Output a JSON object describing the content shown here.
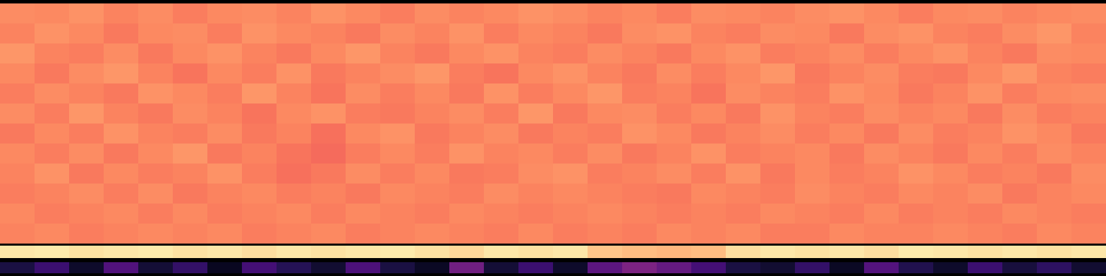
{
  "chart_data": [
    {
      "type": "heatmap",
      "color": "magma",
      "color_range": [
        0,
        1
      ],
      "tick_labels": false,
      "cells": [
        [
          0.76,
          0.75,
          0.77,
          0.74,
          0.76,
          0.73,
          0.75,
          0.76,
          0.74,
          0.77,
          0.75,
          0.73,
          0.76,
          0.74,
          0.75,
          0.77,
          0.76,
          0.74,
          0.75,
          0.73,
          0.76,
          0.75,
          0.74,
          0.76,
          0.77,
          0.75,
          0.73,
          0.75,
          0.76,
          0.74,
          0.75,
          0.76
        ],
        [
          0.74,
          0.77,
          0.75,
          0.72,
          0.75,
          0.76,
          0.73,
          0.77,
          0.75,
          0.74,
          0.72,
          0.76,
          0.74,
          0.77,
          0.73,
          0.75,
          0.74,
          0.72,
          0.76,
          0.77,
          0.74,
          0.73,
          0.76,
          0.75,
          0.72,
          0.76,
          0.77,
          0.74,
          0.73,
          0.76,
          0.78,
          0.74
        ],
        [
          0.78,
          0.74,
          0.73,
          0.76,
          0.72,
          0.75,
          0.77,
          0.74,
          0.72,
          0.75,
          0.78,
          0.74,
          0.72,
          0.75,
          0.77,
          0.74,
          0.73,
          0.76,
          0.74,
          0.72,
          0.75,
          0.77,
          0.73,
          0.74,
          0.76,
          0.73,
          0.75,
          0.77,
          0.74,
          0.72,
          0.76,
          0.75
        ],
        [
          0.75,
          0.72,
          0.76,
          0.78,
          0.74,
          0.71,
          0.75,
          0.73,
          0.77,
          0.72,
          0.74,
          0.76,
          0.78,
          0.73,
          0.71,
          0.75,
          0.77,
          0.74,
          0.72,
          0.76,
          0.73,
          0.75,
          0.78,
          0.72,
          0.74,
          0.76,
          0.73,
          0.72,
          0.75,
          0.78,
          0.74,
          0.73
        ],
        [
          0.73,
          0.76,
          0.74,
          0.72,
          0.77,
          0.75,
          0.73,
          0.78,
          0.74,
          0.71,
          0.76,
          0.73,
          0.75,
          0.72,
          0.77,
          0.73,
          0.75,
          0.78,
          0.73,
          0.74,
          0.71,
          0.76,
          0.74,
          0.73,
          0.77,
          0.75,
          0.72,
          0.74,
          0.77,
          0.73,
          0.75,
          0.76
        ],
        [
          0.76,
          0.73,
          0.78,
          0.74,
          0.72,
          0.76,
          0.74,
          0.71,
          0.75,
          0.77,
          0.73,
          0.72,
          0.74,
          0.76,
          0.73,
          0.78,
          0.72,
          0.75,
          0.76,
          0.73,
          0.75,
          0.72,
          0.77,
          0.74,
          0.73,
          0.76,
          0.74,
          0.75,
          0.72,
          0.76,
          0.73,
          0.74
        ],
        [
          0.72,
          0.75,
          0.73,
          0.77,
          0.74,
          0.73,
          0.76,
          0.72,
          0.74,
          0.7,
          0.75,
          0.77,
          0.72,
          0.74,
          0.76,
          0.72,
          0.74,
          0.73,
          0.77,
          0.75,
          0.72,
          0.74,
          0.76,
          0.73,
          0.75,
          0.72,
          0.76,
          0.73,
          0.74,
          0.77,
          0.75,
          0.72
        ],
        [
          0.75,
          0.73,
          0.76,
          0.72,
          0.75,
          0.78,
          0.72,
          0.74,
          0.71,
          0.69,
          0.73,
          0.75,
          0.73,
          0.77,
          0.74,
          0.75,
          0.73,
          0.76,
          0.72,
          0.74,
          0.77,
          0.73,
          0.74,
          0.75,
          0.72,
          0.76,
          0.74,
          0.72,
          0.75,
          0.73,
          0.76,
          0.74
        ],
        [
          0.74,
          0.77,
          0.72,
          0.75,
          0.73,
          0.74,
          0.77,
          0.73,
          0.7,
          0.72,
          0.76,
          0.73,
          0.75,
          0.72,
          0.73,
          0.76,
          0.77,
          0.73,
          0.74,
          0.76,
          0.73,
          0.77,
          0.72,
          0.75,
          0.73,
          0.74,
          0.77,
          0.75,
          0.73,
          0.74,
          0.72,
          0.76
        ],
        [
          0.73,
          0.74,
          0.76,
          0.73,
          0.76,
          0.72,
          0.74,
          0.75,
          0.73,
          0.74,
          0.72,
          0.75,
          0.74,
          0.73,
          0.76,
          0.74,
          0.75,
          0.74,
          0.73,
          0.72,
          0.75,
          0.74,
          0.73,
          0.76,
          0.74,
          0.73,
          0.75,
          0.74,
          0.76,
          0.72,
          0.74,
          0.75
        ],
        [
          0.75,
          0.73,
          0.74,
          0.75,
          0.73,
          0.75,
          0.73,
          0.74,
          0.75,
          0.73,
          0.75,
          0.74,
          0.73,
          0.75,
          0.74,
          0.73,
          0.74,
          0.75,
          0.74,
          0.73,
          0.74,
          0.73,
          0.75,
          0.74,
          0.73,
          0.75,
          0.73,
          0.74,
          0.73,
          0.75,
          0.74,
          0.73
        ],
        [
          0.74,
          0.75,
          0.73,
          0.74,
          0.75,
          0.74,
          0.75,
          0.73,
          0.74,
          0.75,
          0.73,
          0.74,
          0.75,
          0.74,
          0.73,
          0.75,
          0.73,
          0.74,
          0.73,
          0.75,
          0.74,
          0.75,
          0.73,
          0.73,
          0.75,
          0.74,
          0.74,
          0.75,
          0.74,
          0.73,
          0.75,
          0.74
        ]
      ]
    },
    {
      "type": "heatmap",
      "color": "magma",
      "color_range": [
        0,
        1
      ],
      "tick_labels": false,
      "cells": [
        [
          0.95,
          0.96,
          0.94,
          0.95,
          0.96,
          0.94,
          0.95,
          0.93,
          0.95,
          0.94,
          0.95,
          0.96,
          0.94,
          0.92,
          0.95,
          0.94,
          0.95,
          0.88,
          0.86,
          0.85,
          0.86,
          0.93,
          0.95,
          0.94,
          0.95,
          0.93,
          0.96,
          0.95,
          0.94,
          0.95,
          0.94,
          0.95
        ]
      ]
    },
    {
      "type": "heatmap",
      "color": "magma",
      "color_range": [
        0,
        1
      ],
      "tick_labels": false,
      "cells": [
        [
          0.12,
          0.2,
          0.08,
          0.25,
          0.1,
          0.18,
          0.06,
          0.22,
          0.15,
          0.09,
          0.24,
          0.12,
          0.07,
          0.33,
          0.1,
          0.2,
          0.08,
          0.28,
          0.36,
          0.3,
          0.22,
          0.12,
          0.09,
          0.18,
          0.07,
          0.26,
          0.14,
          0.08,
          0.2,
          0.11,
          0.17,
          0.09
        ]
      ]
    }
  ]
}
